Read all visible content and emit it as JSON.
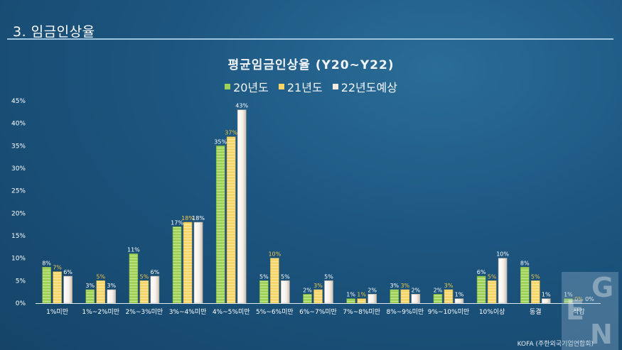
{
  "header": {
    "title": "3. 임금인상율"
  },
  "source": "KOFA (주한외국기업연합회)",
  "watermark": [
    "G",
    "E",
    "N"
  ],
  "chart_data": {
    "type": "bar",
    "title": "평균임금인상율 (Y20~Y22)",
    "categories": [
      "1%미만",
      "1%~2%미만",
      "2%~3%미만",
      "3%~4%미만",
      "4%~5%미만",
      "5%~6%미만",
      "6%~7%미만",
      "7%~8%미만",
      "8%~9%미만",
      "9%~10%미만",
      "10%이상",
      "동결",
      "삭감"
    ],
    "series": [
      {
        "name": "20년도",
        "color": "#9fd15a",
        "label_color": "#ffffff",
        "values": [
          8,
          3,
          11,
          17,
          35,
          5,
          2,
          1,
          3,
          2,
          6,
          8,
          1
        ],
        "labels": [
          "8%",
          "3%",
          "11%",
          "17%",
          "35%",
          "5%",
          "2%",
          "1%",
          "3%",
          "2%",
          "6%",
          "8%",
          "1%"
        ]
      },
      {
        "name": "21년도",
        "color": "#f6d66a",
        "label_color": "#f4c84a",
        "values": [
          7,
          5,
          5,
          18,
          37,
          10,
          3,
          1,
          3,
          3,
          5,
          5,
          0
        ],
        "labels": [
          "7%",
          "5%",
          "5%",
          "18%",
          "37%",
          "10%",
          "3%",
          "1%",
          "3%",
          "3%",
          "5%",
          "5%",
          "0%"
        ]
      },
      {
        "name": "22년도예상",
        "color": "#f3ebe1",
        "label_color": "#ffffff",
        "values": [
          6,
          3,
          6,
          18,
          43,
          5,
          5,
          2,
          2,
          1,
          10,
          1,
          0
        ],
        "labels": [
          "6%",
          "3%",
          "6%",
          "18%",
          "43%",
          "5%",
          "5%",
          "2%",
          "2%",
          "1%",
          "10%",
          "1%",
          "0%"
        ]
      }
    ],
    "y_ticks": [
      "0%",
      "5%",
      "10%",
      "15%",
      "20%",
      "25%",
      "30%",
      "35%",
      "40%",
      "45%"
    ],
    "ylim": [
      0,
      45
    ],
    "legend_position": "top-center",
    "grid": false
  }
}
